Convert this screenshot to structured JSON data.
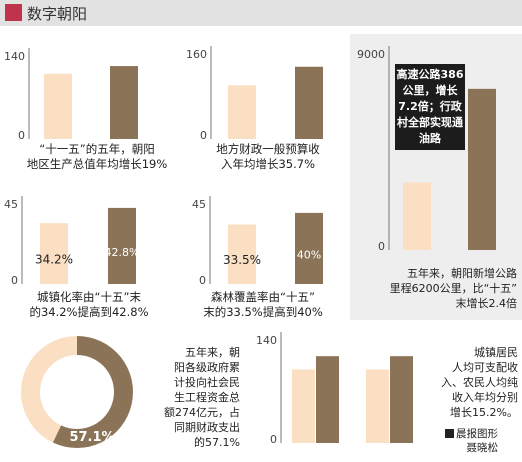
{
  "header": {
    "title": "数字朝阳"
  },
  "colors": {
    "light": "#fbdfc2",
    "dark": "#8b7358",
    "donut_dark": "#8b7358",
    "donut_light": "#fbdfc2"
  },
  "chart_data": [
    {
      "type": "bar",
      "id": "gdp",
      "ylim": [
        0,
        140
      ],
      "y_ticks": [
        "140",
        "0"
      ],
      "values": [
        110,
        123
      ],
      "caption": [
        "“十一五”的五年，朝阳",
        "地区生产总值年均增长19%"
      ]
    },
    {
      "type": "bar",
      "id": "revenue",
      "ylim": [
        0,
        160
      ],
      "y_ticks": [
        "160",
        "0"
      ],
      "values": [
        101,
        136
      ],
      "caption": [
        "地方财政一般预算收",
        "入年均增长35.7%"
      ]
    },
    {
      "type": "bar",
      "id": "roads",
      "ylim": [
        0,
        9000
      ],
      "y_ticks": [
        "9000",
        "0"
      ],
      "values": [
        3100,
        7400
      ],
      "callout": "高速公路386公里，增长7.2倍；行政村全部实现通油路",
      "caption": [
        "五年来，朝阳新增公路",
        "里程6200公里，比“十五”",
        "末增长2.4倍"
      ]
    },
    {
      "type": "bar",
      "id": "urbanization",
      "ylim": [
        0,
        45
      ],
      "y_ticks": [
        "45",
        "0"
      ],
      "values": [
        34.2,
        42.8
      ],
      "data_labels": [
        "34.2%",
        "42.8%"
      ],
      "caption": [
        "城镇化率由“十五”末",
        "的34.2%提高到42.8%"
      ]
    },
    {
      "type": "bar",
      "id": "forest",
      "ylim": [
        0,
        45
      ],
      "y_ticks": [
        "45",
        "0"
      ],
      "values": [
        33.5,
        40
      ],
      "data_labels": [
        "33.5%",
        "40%"
      ],
      "caption": [
        "森林覆盖率由“十五”",
        "末的33.5%提高到40%"
      ]
    },
    {
      "type": "pie",
      "id": "welfare",
      "values": [
        57.1,
        42.9
      ],
      "data_labels": [
        "57.1%"
      ],
      "caption": [
        "五年来，朝",
        "阳各级政府累",
        "计投向社会民",
        "生工程资金总",
        "额274亿元，占",
        "同期财政支出",
        "的57.1%"
      ]
    },
    {
      "type": "bar",
      "id": "income",
      "ylim": [
        0,
        140
      ],
      "y_ticks": [
        "140",
        "0"
      ],
      "groups": [
        [
          100,
          118
        ],
        [
          100,
          118
        ]
      ],
      "caption": [
        "城镇居民",
        "人均可支配收",
        "入、农民人均纯",
        "收入年均分别",
        "增长15.2%。"
      ]
    }
  ],
  "credit": [
    "晨报图形",
    "聂晓松"
  ]
}
